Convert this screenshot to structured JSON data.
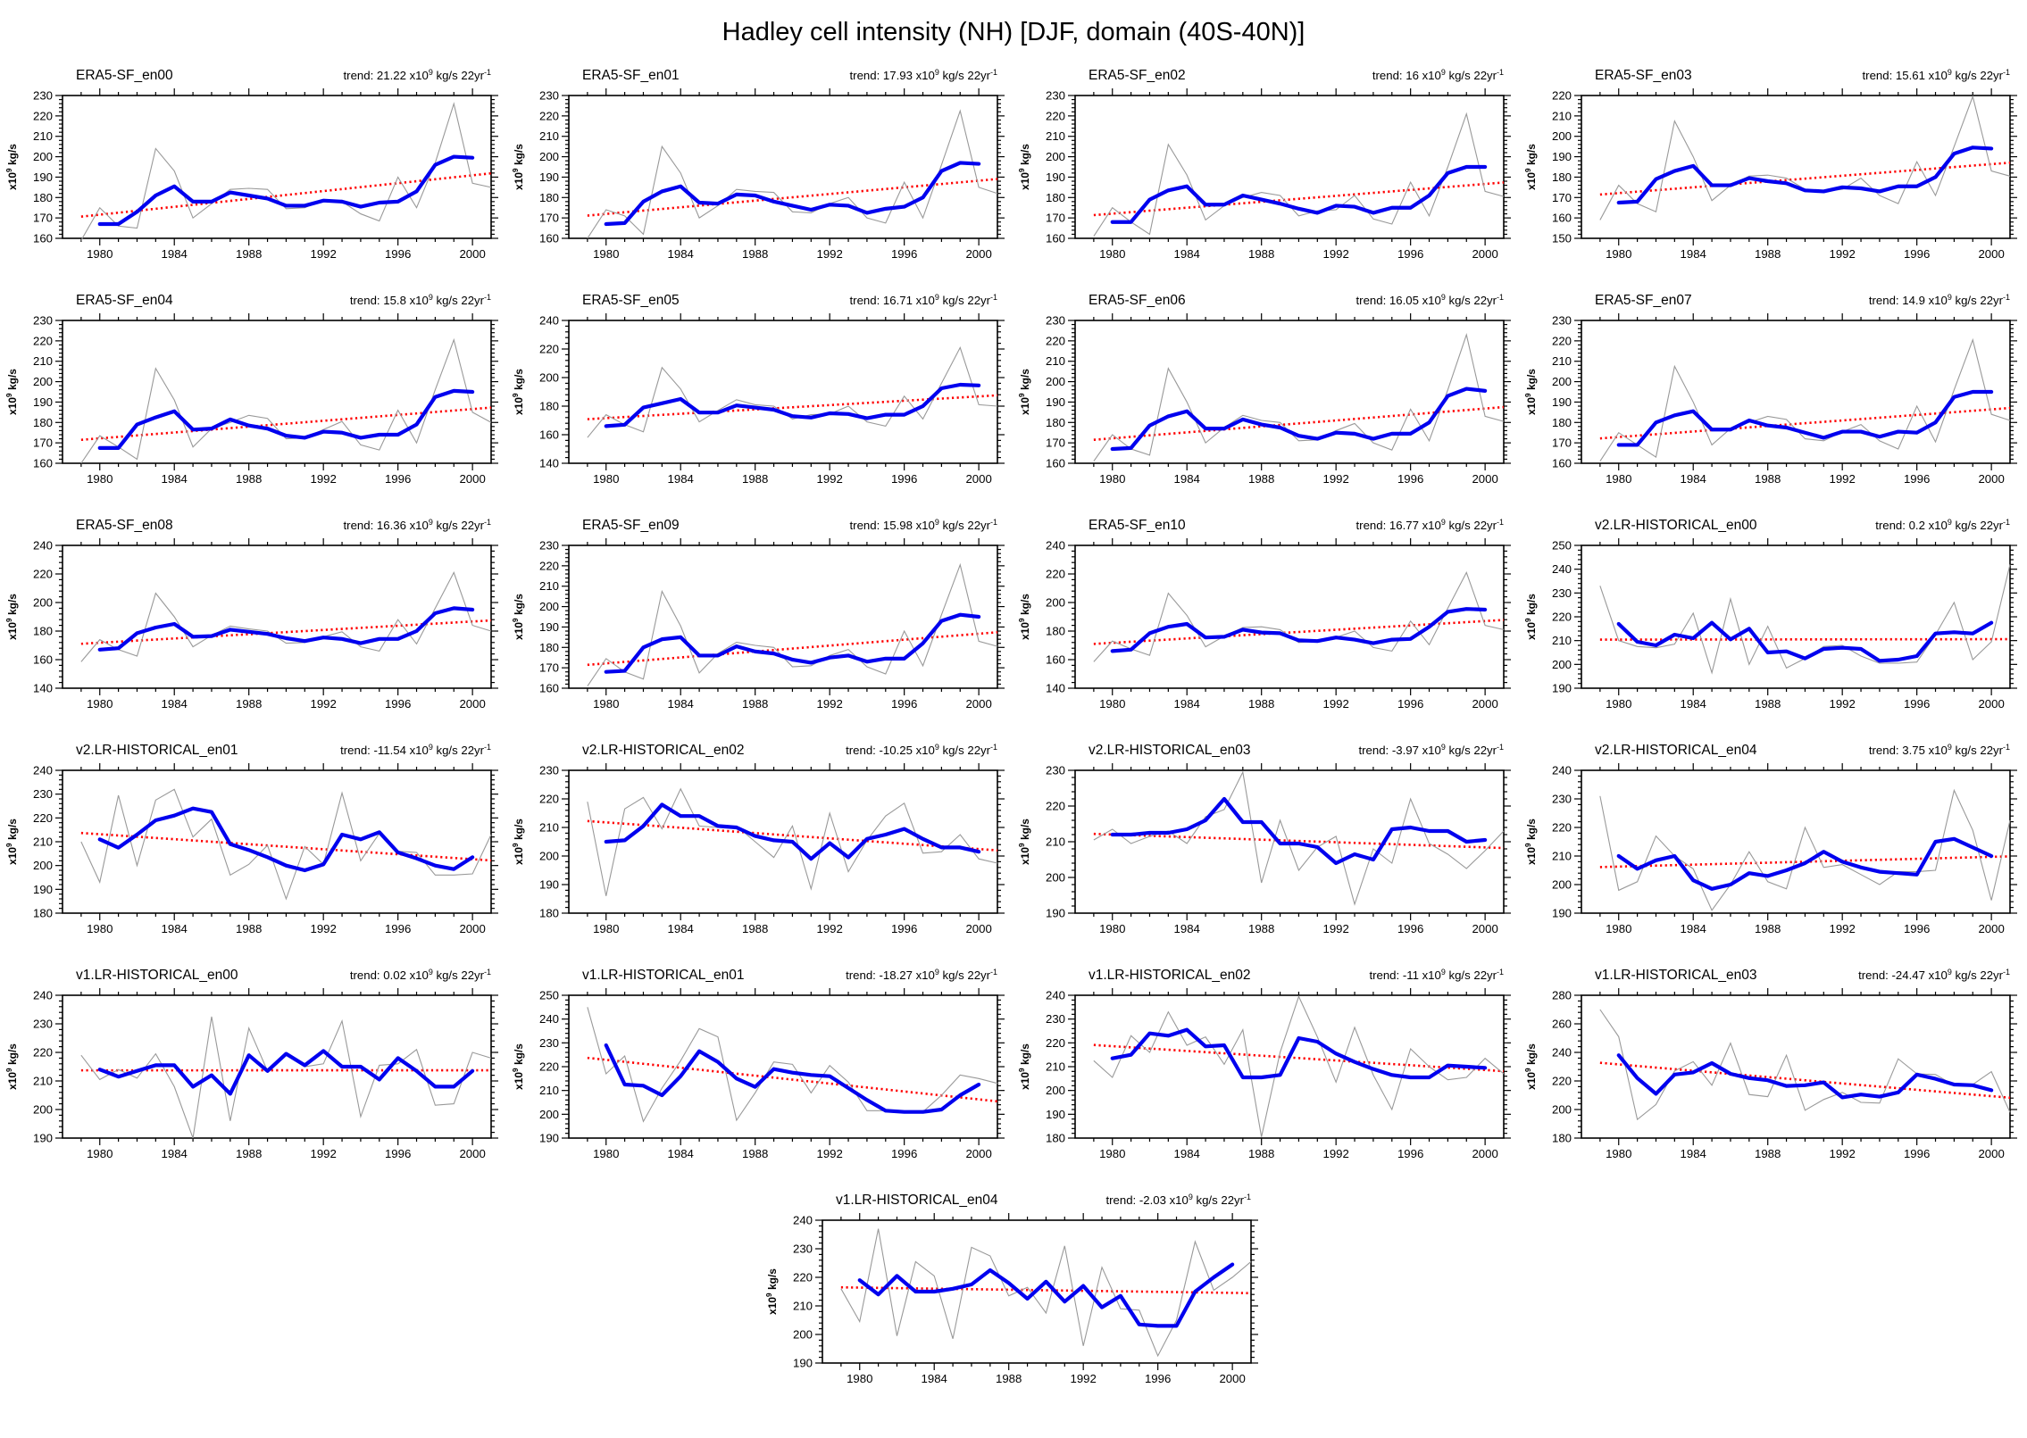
{
  "main_title": "Hadley cell intensity (NH) [DJF, domain (40S-40N)]",
  "labels": {
    "trend_prefix": "trend: ",
    "scale_base": "x10",
    "scale_exp": "9",
    "trend_units_tail": " kg/s 22yr",
    "trend_units_exp": "-1",
    "y_axis_units_tail": " kg/s"
  },
  "colors": {
    "raw_line": "#999999",
    "smoothed_line": "#0000ee",
    "trend_line": "#ff0000",
    "axis": "#000000"
  },
  "x_axis": {
    "tick_labels": [
      "1980",
      "1984",
      "1988",
      "1992",
      "1996",
      "2000"
    ],
    "range": [
      1978,
      2001
    ],
    "raw_start_year": 1979,
    "smoothed_start_year": 1980
  },
  "chart_data": [
    {
      "type": "line",
      "title": "ERA5-SF_en00",
      "trend": "21.22",
      "ylim": [
        160,
        230
      ],
      "ystep": 10,
      "raw": [
        159,
        175,
        166,
        165,
        204,
        193,
        170,
        177,
        184,
        184.5,
        184,
        174.5,
        175,
        179,
        178,
        172,
        168.5,
        190,
        175,
        197,
        226,
        187,
        185
      ],
      "smoothed": [
        167,
        167,
        173,
        181,
        185.5,
        178,
        178,
        182.5,
        181,
        179.5,
        176,
        176,
        178.5,
        178,
        175.5,
        177.5,
        178,
        183,
        196,
        200,
        199.5
      ]
    },
    {
      "type": "line",
      "title": "ERA5-SF_en01",
      "trend": "17.93",
      "ylim": [
        160,
        230
      ],
      "ystep": 10,
      "raw": [
        160,
        174,
        171,
        162,
        205,
        192,
        170,
        176,
        184,
        183,
        182.5,
        173,
        172.5,
        177,
        180,
        170,
        167.5,
        187.5,
        170,
        196,
        222.5,
        185,
        182
      ],
      "smoothed": [
        167,
        167.5,
        178,
        183,
        185.5,
        177.5,
        177,
        181.5,
        181,
        178,
        176,
        174,
        176.5,
        176,
        172.5,
        174.5,
        175.5,
        180,
        193,
        197,
        196.5
      ]
    },
    {
      "type": "line",
      "title": "ERA5-SF_en02",
      "trend": "16",
      "ylim": [
        160,
        230
      ],
      "ystep": 10,
      "raw": [
        161,
        175,
        168,
        162,
        206,
        191,
        169,
        176,
        180,
        182.5,
        181,
        171,
        173.5,
        174,
        181,
        169.5,
        167,
        187.5,
        171,
        195,
        221,
        183,
        180.5
      ],
      "smoothed": [
        168,
        168,
        179,
        183.5,
        185.5,
        176.5,
        176.5,
        181,
        179,
        177,
        174.5,
        172.5,
        176,
        175.5,
        172.5,
        175,
        175,
        181,
        192,
        195,
        195
      ]
    },
    {
      "type": "line",
      "title": "ERA5-SF_en03",
      "trend": "15.61",
      "ylim": [
        150,
        220
      ],
      "ystep": 10,
      "raw": [
        159,
        176,
        167,
        163,
        207.5,
        190,
        168.5,
        176,
        180.5,
        181,
        179.5,
        174,
        173,
        174,
        179.5,
        171,
        167,
        187.5,
        171,
        195,
        219.5,
        183,
        180.5
      ],
      "smoothed": [
        167.5,
        168,
        179,
        183,
        185.5,
        176,
        176,
        179.5,
        178,
        177,
        173.5,
        173,
        175,
        174.5,
        173,
        175.5,
        175.5,
        180,
        191.5,
        194.5,
        194
      ]
    },
    {
      "type": "line",
      "title": "ERA5-SF_en04",
      "trend": "15.8",
      "ylim": [
        160,
        230
      ],
      "ystep": 10,
      "raw": [
        160,
        173.5,
        168,
        162,
        206.5,
        191,
        168,
        177,
        180,
        183.5,
        182,
        172,
        172.5,
        176.5,
        180.5,
        169,
        166.5,
        186,
        170,
        196,
        220.5,
        185,
        180
      ],
      "smoothed": [
        167.5,
        167.5,
        179,
        182.5,
        185.5,
        176.5,
        177,
        181.5,
        178.5,
        177,
        173.5,
        172.5,
        175.5,
        175,
        172.5,
        174,
        174,
        179,
        192.5,
        195.5,
        195
      ]
    },
    {
      "type": "line",
      "title": "ERA5-SF_en05",
      "trend": "16.71",
      "ylim": [
        140,
        240
      ],
      "ystep": 20,
      "raw": [
        158,
        174,
        167,
        162,
        207,
        192,
        169,
        177,
        184.5,
        181,
        180,
        171,
        174,
        174.5,
        180,
        169,
        166,
        187,
        171,
        196,
        221,
        181,
        180
      ],
      "smoothed": [
        166,
        167,
        179,
        182,
        185,
        175.5,
        175.5,
        180.5,
        179,
        177.5,
        173,
        172,
        175,
        174.5,
        171.5,
        174,
        174,
        180,
        192.5,
        195,
        194.5
      ]
    },
    {
      "type": "line",
      "title": "ERA5-SF_en06",
      "trend": "16.05",
      "ylim": [
        160,
        230
      ],
      "ystep": 10,
      "raw": [
        161,
        174,
        167,
        164,
        206.5,
        190,
        170,
        177.5,
        183.5,
        181,
        180,
        171,
        171.5,
        176,
        179.5,
        170,
        166.5,
        186.5,
        171,
        196,
        223,
        183,
        180.5
      ],
      "smoothed": [
        167,
        167.5,
        178.5,
        183,
        185.5,
        177,
        177,
        181.5,
        179,
        177.5,
        173.5,
        172,
        175,
        174.5,
        172,
        174.5,
        174.5,
        180,
        193,
        196.5,
        195.5
      ]
    },
    {
      "type": "line",
      "title": "ERA5-SF_en07",
      "trend": "14.9",
      "ylim": [
        160,
        230
      ],
      "ystep": 10,
      "raw": [
        161,
        175,
        169,
        163,
        207.5,
        190,
        169,
        177,
        180,
        183,
        181.5,
        172,
        171,
        175.5,
        179,
        171,
        167,
        188,
        170.5,
        196,
        220.5,
        184,
        181
      ],
      "smoothed": [
        169,
        169,
        180,
        183.5,
        185.5,
        176.5,
        176.5,
        181,
        178.5,
        177.5,
        175,
        172.5,
        175.5,
        175.5,
        173,
        175.5,
        175,
        180,
        192.5,
        195,
        195
      ]
    },
    {
      "type": "line",
      "title": "ERA5-SF_en08",
      "trend": "16.36",
      "ylim": [
        140,
        240
      ],
      "ystep": 20,
      "raw": [
        158.5,
        174,
        167,
        162.5,
        206.5,
        190,
        169,
        177,
        183.5,
        181.5,
        180,
        171.5,
        172,
        176,
        179.5,
        169,
        166,
        188,
        171,
        196,
        221,
        184,
        180
      ],
      "smoothed": [
        167,
        168,
        178.5,
        182.5,
        185,
        176,
        176.5,
        181,
        179.5,
        178,
        175,
        173,
        175.5,
        174.5,
        171.5,
        174.5,
        174.5,
        180,
        192.5,
        196,
        195
      ]
    },
    {
      "type": "line",
      "title": "ERA5-SF_en09",
      "trend": "15.98",
      "ylim": [
        160,
        230
      ],
      "ystep": 10,
      "raw": [
        161,
        174.5,
        168,
        164.5,
        207.5,
        190.5,
        167.5,
        177,
        182.5,
        181,
        180,
        170.5,
        171,
        176,
        179,
        170.5,
        167,
        188,
        171,
        196,
        220.5,
        183,
        180.5
      ],
      "smoothed": [
        168,
        168.5,
        180,
        184,
        185,
        176,
        176,
        180.5,
        178,
        177,
        174,
        172.5,
        175,
        176,
        173,
        174.5,
        174.5,
        182,
        193,
        196,
        195
      ]
    },
    {
      "type": "line",
      "title": "ERA5-SF_en10",
      "trend": "16.77",
      "ylim": [
        140,
        240
      ],
      "ystep": 20,
      "raw": [
        158.5,
        173,
        167.5,
        163,
        206.5,
        191,
        169,
        176.5,
        182.5,
        183,
        181,
        172,
        173,
        175.5,
        180,
        168.5,
        166,
        187,
        170.5,
        196,
        221,
        184,
        181
      ],
      "smoothed": [
        166,
        167,
        178.5,
        183,
        185,
        175.5,
        176,
        181,
        179,
        178.5,
        173.5,
        173,
        175.5,
        174,
        171.5,
        174,
        174.5,
        183,
        193.5,
        195.5,
        195
      ]
    },
    {
      "type": "line",
      "title": "v2.LR-HISTORICAL_en00",
      "trend": "0.2",
      "ylim": [
        190,
        250
      ],
      "ystep": 10,
      "raw": [
        233,
        210,
        207.5,
        207,
        208.5,
        221.5,
        196.5,
        227.5,
        200,
        216,
        198.5,
        202.5,
        207.5,
        208,
        203.5,
        200.5,
        200.5,
        201,
        212.5,
        226,
        202,
        209.5,
        242
      ],
      "smoothed": [
        217,
        209.5,
        208,
        212.5,
        211,
        217.5,
        210.5,
        215,
        205,
        205.5,
        202.5,
        206.5,
        207,
        206.5,
        201.5,
        202,
        203.5,
        213,
        213.5,
        213,
        217.5
      ]
    },
    {
      "type": "line",
      "title": "v2.LR-HISTORICAL_en01",
      "trend": "-11.54",
      "ylim": [
        180,
        240
      ],
      "ystep": 10,
      "raw": [
        210,
        193,
        229.5,
        200,
        227.5,
        232,
        212,
        219.5,
        196,
        200.5,
        208.5,
        186,
        208,
        200.5,
        230.5,
        202,
        213.5,
        206,
        205.5,
        196,
        196,
        196.5,
        213
      ],
      "smoothed": [
        211,
        207.5,
        213,
        219,
        221,
        224,
        222.5,
        209,
        206.5,
        203.5,
        200,
        198,
        200.5,
        213,
        211,
        214,
        205.5,
        203,
        200,
        198.5,
        203.5
      ]
    },
    {
      "type": "line",
      "title": "v2.LR-HISTORICAL_en02",
      "trend": "-10.25",
      "ylim": [
        180,
        230
      ],
      "ystep": 10,
      "raw": [
        219,
        186,
        216.5,
        220.5,
        209.5,
        223.5,
        210.5,
        210,
        210.5,
        205,
        199.5,
        210.5,
        188.5,
        215,
        194.5,
        205.5,
        214,
        218.5,
        201,
        201.5,
        207.5,
        199,
        197.5
      ],
      "smoothed": [
        205,
        205.5,
        210.5,
        218,
        214,
        214,
        210.5,
        210,
        207,
        205.5,
        205,
        199,
        204.5,
        199.5,
        206,
        207.5,
        209.5,
        206,
        203,
        203,
        201.5
      ]
    },
    {
      "type": "line",
      "title": "v2.LR-HISTORICAL_en03",
      "trend": "-3.97",
      "ylim": [
        190,
        230
      ],
      "ystep": 10,
      "raw": [
        210.5,
        213.5,
        209.5,
        211.5,
        213,
        209.5,
        217,
        219,
        229.5,
        198.5,
        216,
        202,
        208.5,
        211.5,
        192.5,
        208,
        204,
        222,
        209.5,
        206.5,
        202.5,
        207.5,
        213
      ],
      "smoothed": [
        212,
        212,
        212.5,
        212.5,
        213.5,
        216,
        222,
        215.5,
        215.5,
        209.5,
        209.5,
        208.5,
        204,
        206.5,
        205,
        213.5,
        214,
        213,
        213,
        210,
        210.5
      ]
    },
    {
      "type": "line",
      "title": "v2.LR-HISTORICAL_en04",
      "trend": "3.75",
      "ylim": [
        190,
        240
      ],
      "ystep": 10,
      "raw": [
        231,
        198,
        201,
        217,
        210,
        205.5,
        191,
        200,
        211.5,
        201,
        198.5,
        220,
        206,
        207,
        203.5,
        200,
        204.5,
        204.5,
        205,
        233,
        219,
        194.5,
        222.5
      ],
      "smoothed": [
        210,
        205.5,
        208.5,
        210,
        201.5,
        198.5,
        200,
        204,
        203,
        205,
        207.5,
        211.5,
        208,
        206,
        204.5,
        204,
        203.5,
        215,
        216,
        213,
        210
      ]
    },
    {
      "type": "line",
      "title": "v1.LR-HISTORICAL_en00",
      "trend": "0.02",
      "ylim": [
        190,
        240
      ],
      "ystep": 10,
      "raw": [
        219,
        210.5,
        214,
        211,
        219.5,
        208,
        190,
        232.5,
        196,
        228.5,
        213.5,
        219.5,
        215,
        216,
        231,
        197.5,
        215.5,
        216,
        221,
        201.5,
        202,
        220,
        218
      ],
      "smoothed": [
        214,
        211.5,
        213.5,
        215.5,
        215.5,
        208,
        212,
        205.5,
        219,
        213.5,
        219.5,
        215.5,
        220.5,
        215,
        215,
        210.5,
        218,
        213.5,
        208,
        208,
        213.5
      ]
    },
    {
      "type": "line",
      "title": "v1.LR-HISTORICAL_en01",
      "trend": "-18.27",
      "ylim": [
        190,
        250
      ],
      "ystep": 10,
      "raw": [
        245,
        217,
        224.5,
        197,
        211,
        222.5,
        236,
        232.5,
        197.5,
        209,
        222,
        221,
        209,
        220.5,
        213.5,
        201.5,
        201.5,
        200.5,
        201,
        208,
        216.5,
        215,
        213
      ],
      "smoothed": [
        229,
        212.5,
        212,
        208,
        216,
        226.5,
        222,
        215,
        211.5,
        219,
        217.5,
        216.5,
        216,
        211,
        206,
        201.5,
        201,
        201,
        202,
        208,
        212.5
      ]
    },
    {
      "type": "line",
      "title": "v1.LR-HISTORICAL_en02",
      "trend": "-11",
      "ylim": [
        180,
        240
      ],
      "ystep": 10,
      "raw": [
        212.5,
        205.5,
        223,
        216,
        233,
        219,
        222.5,
        211,
        225.5,
        180.5,
        216,
        239.5,
        222.5,
        203.5,
        226.5,
        206.5,
        192,
        217.5,
        210,
        204.5,
        205.5,
        213.5,
        207
      ],
      "smoothed": [
        213.5,
        215,
        224,
        223,
        225.5,
        218.5,
        219,
        205.5,
        205.5,
        206.5,
        222,
        220.5,
        215.5,
        212,
        209,
        206.5,
        205.5,
        205.5,
        210.5,
        210,
        209.5
      ]
    },
    {
      "type": "line",
      "title": "v1.LR-HISTORICAL_en03",
      "trend": "-24.47",
      "ylim": [
        180,
        280
      ],
      "ystep": 20,
      "raw": [
        270,
        251,
        193,
        203.5,
        227,
        233.5,
        217,
        246.5,
        210.5,
        209,
        238,
        199.5,
        207,
        212,
        205,
        204.5,
        235.5,
        225,
        224.5,
        217,
        217.5,
        226.5,
        198
      ],
      "smoothed": [
        238,
        222,
        211,
        224.5,
        226,
        232.5,
        225,
        222,
        220.5,
        216.5,
        217,
        219,
        208.5,
        210.5,
        209,
        212,
        224.5,
        221.5,
        217.5,
        217,
        213.5
      ]
    },
    {
      "type": "line",
      "title": "v1.LR-HISTORICAL_en04",
      "trend": "-2.03",
      "ylim": [
        190,
        240
      ],
      "ystep": 10,
      "raw": [
        216,
        204.5,
        237,
        199.5,
        225.5,
        220.5,
        198.5,
        230.5,
        227.5,
        213.5,
        216.5,
        207.5,
        231,
        196,
        223.5,
        209,
        208.5,
        192.5,
        205,
        232.5,
        215.5,
        220,
        225.5
      ],
      "smoothed": [
        219,
        214,
        220.5,
        215,
        215,
        216,
        217.5,
        222.5,
        218,
        212.5,
        218.5,
        211.5,
        217,
        209.5,
        213.5,
        203.5,
        203,
        203,
        215,
        220,
        224.5
      ]
    }
  ]
}
